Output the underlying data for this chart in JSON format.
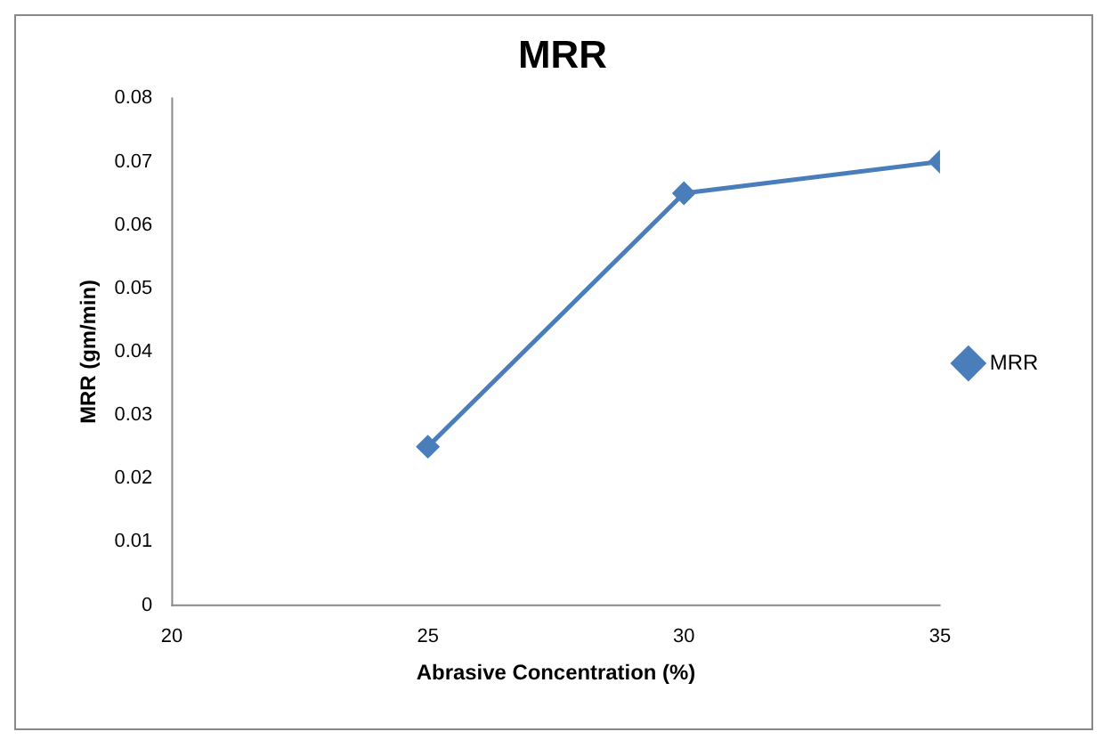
{
  "chart_data": {
    "type": "line",
    "title": "MRR",
    "xlabel": "Abrasive Concentration (%)",
    "ylabel": "MRR (gm/min)",
    "xlim": [
      20,
      35
    ],
    "xticks": [
      20,
      25,
      30,
      35
    ],
    "ylim": [
      0,
      0.08
    ],
    "yticks": [
      0,
      0.01,
      0.02,
      0.03,
      0.04,
      0.05,
      0.06,
      0.07,
      0.08
    ],
    "x": [
      25,
      30,
      35
    ],
    "series": [
      {
        "name": "MRR",
        "color": "#4a7ebb",
        "values": [
          0.025,
          0.065,
          0.07
        ]
      }
    ],
    "grid": false,
    "legend": "right",
    "marker": "diamond",
    "line_style": "solid"
  }
}
